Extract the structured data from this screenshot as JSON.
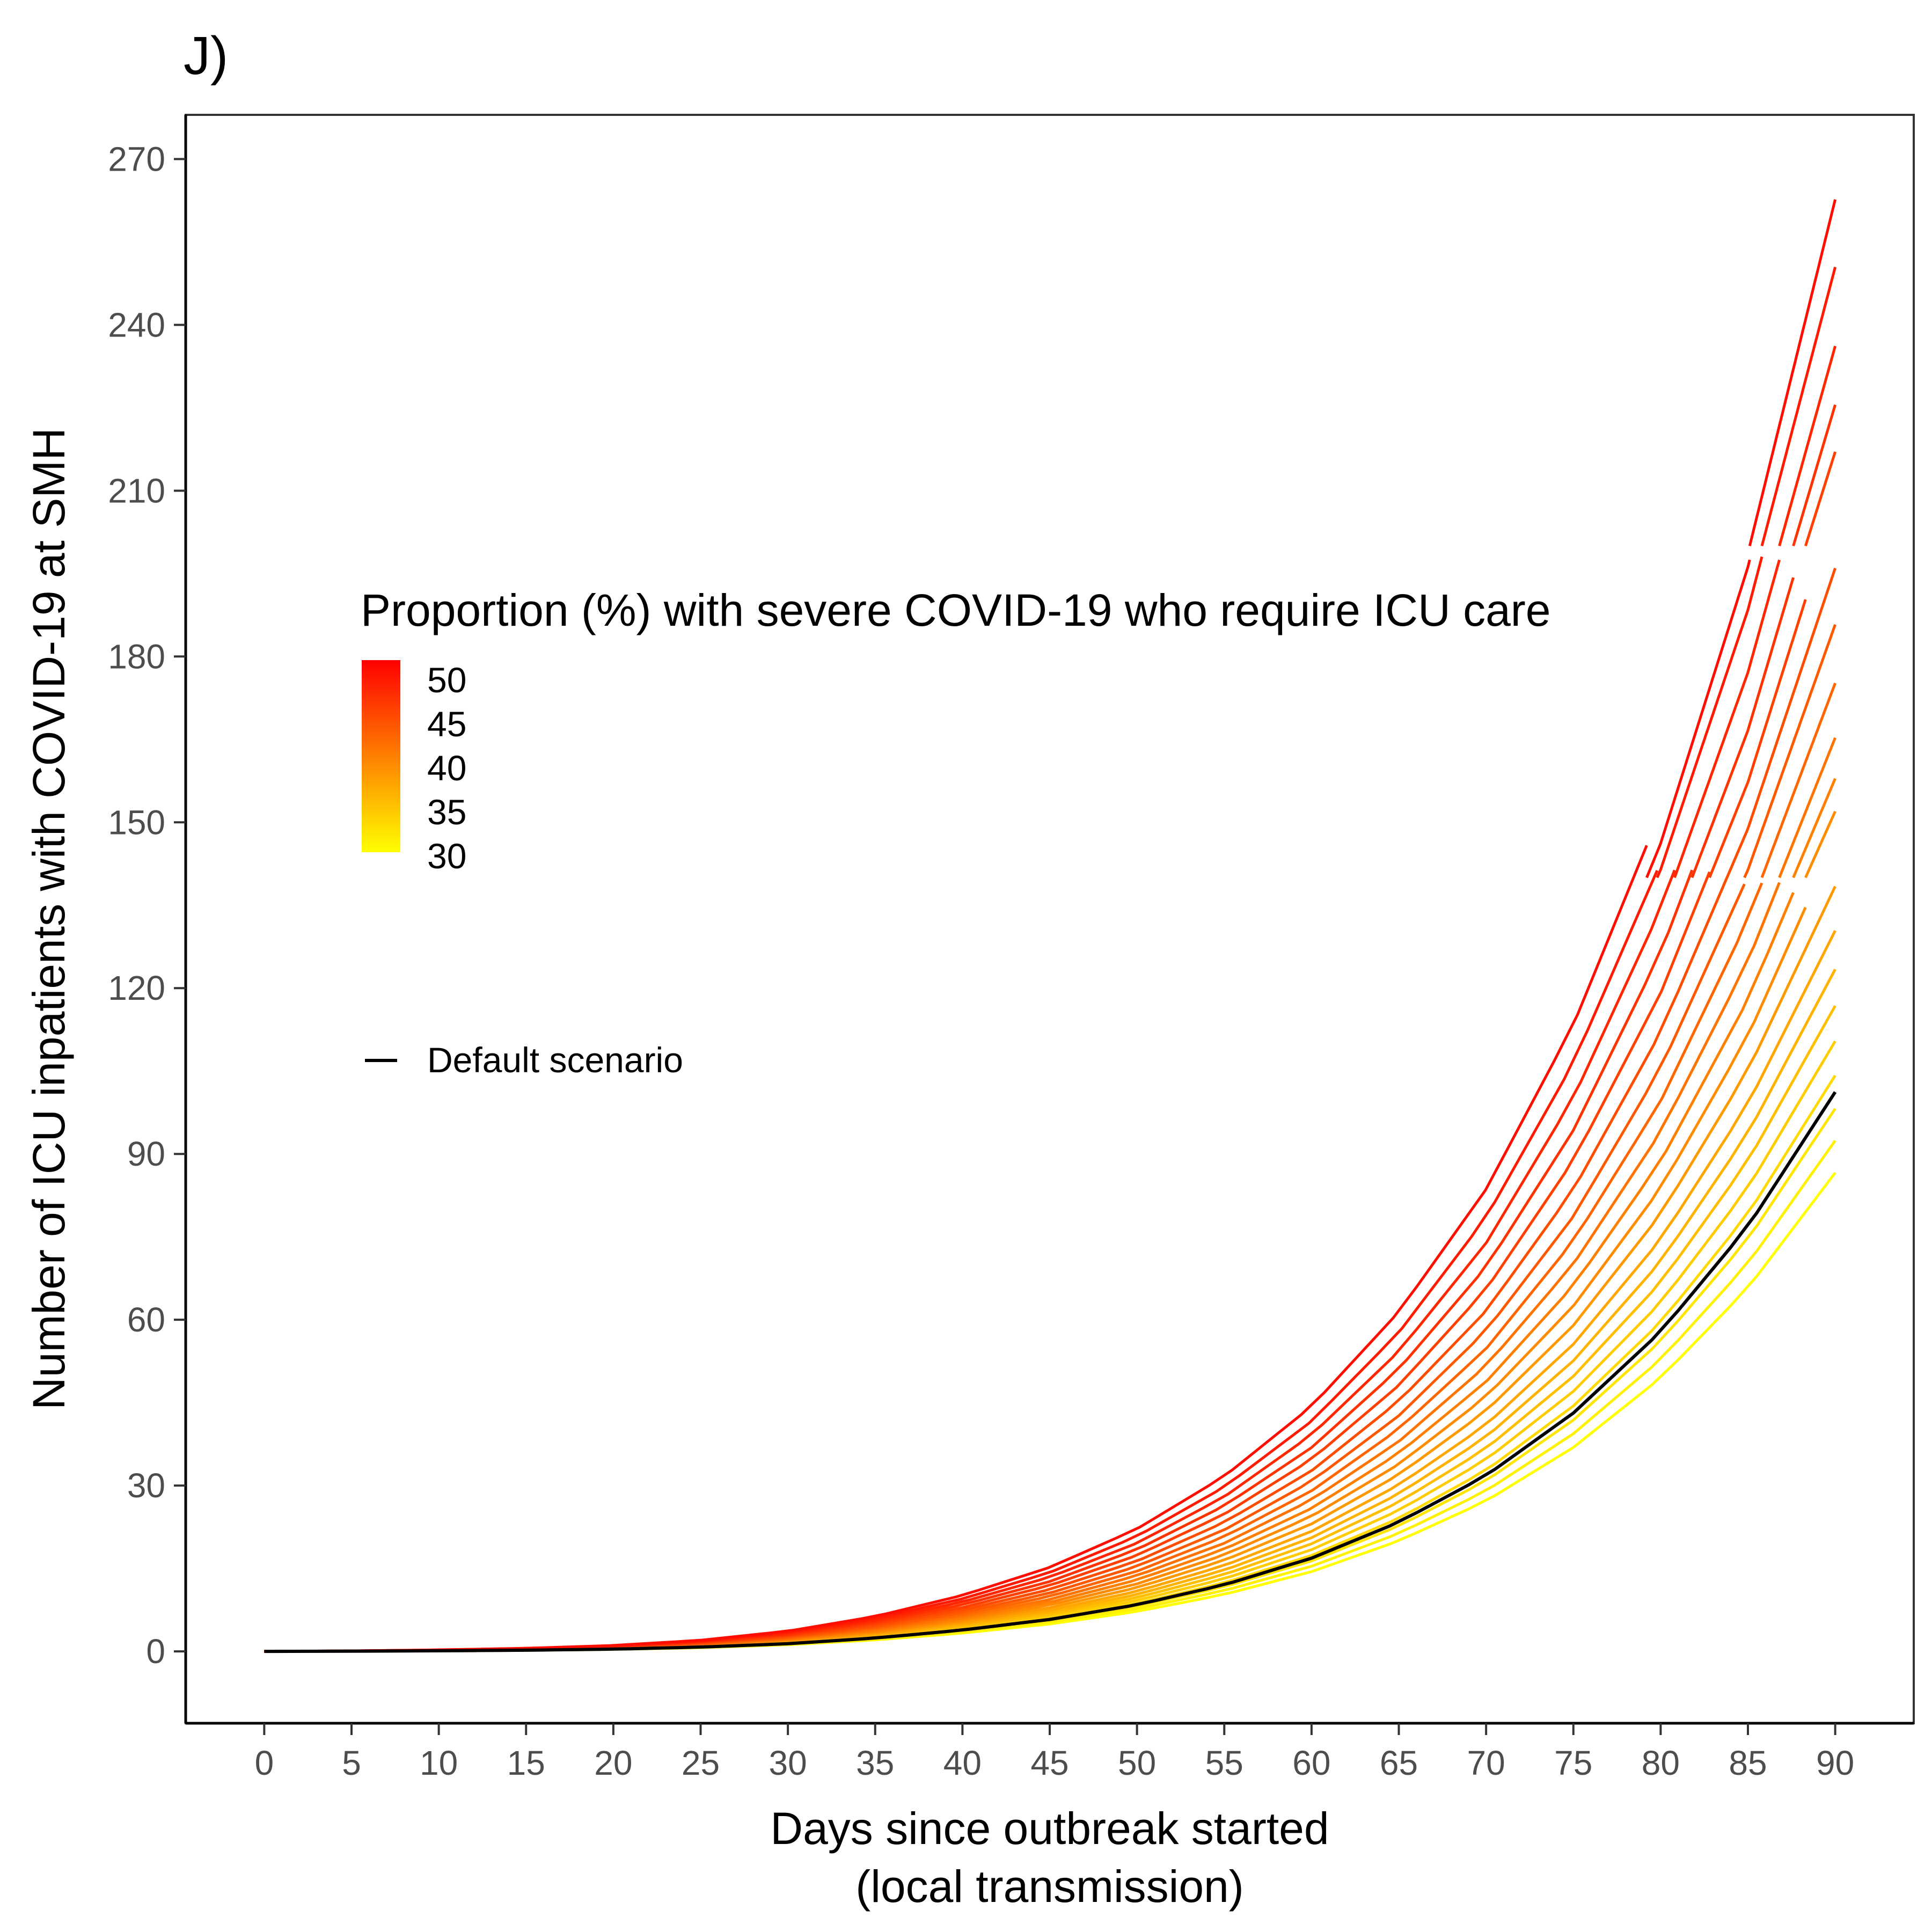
{
  "chart_data": {
    "type": "line",
    "panel_label": "J)",
    "xlabel": [
      "Days since outbreak started",
      "(local transmission)"
    ],
    "ylabel": "Number of ICU inpatients with COVID-19 at SMH",
    "xlim": [
      -4.5,
      94.5
    ],
    "ylim": [
      -13,
      278
    ],
    "x_ticks": [
      0,
      5,
      10,
      15,
      20,
      25,
      30,
      35,
      40,
      45,
      50,
      55,
      60,
      65,
      70,
      75,
      80,
      85,
      90
    ],
    "y_ticks": [
      0,
      30,
      60,
      90,
      120,
      150,
      180,
      210,
      240,
      270
    ],
    "grid": false,
    "legend": {
      "position": "inside-left",
      "title": "Proportion (%) with severe COVID-19 who require ICU care",
      "gradient_colors": [
        "#FFFF00",
        "#FF0000"
      ],
      "gradient_range": [
        30,
        50
      ],
      "gradient_labels": [
        50,
        45,
        40,
        35,
        30
      ],
      "line_label": "Default scenario",
      "line_color": "#000000"
    },
    "x_days": [
      0,
      5,
      10,
      15,
      20,
      25,
      30,
      35,
      40,
      45,
      50,
      55,
      60,
      65,
      70,
      75,
      80,
      85,
      90
    ],
    "growth_shape": [
      0,
      0.0016,
      0.0045,
      0.009,
      0.017,
      0.032,
      0.058,
      0.1,
      0.16,
      0.24,
      0.35,
      0.5,
      0.7,
      0.97,
      1.32,
      1.79,
      2.4,
      3.19,
      4.2
    ],
    "series": [
      {
        "icu_pct": 30,
        "final_value": 86.6,
        "segments": [
          {
            "x": [
              0,
              90
            ],
            "y0": 0
          }
        ]
      },
      {
        "icu_pct": 31,
        "final_value": 92.4,
        "segments": [
          {
            "x": [
              0,
              90
            ],
            "y0": 0
          }
        ]
      },
      {
        "icu_pct": 32,
        "final_value": 98.2,
        "segments": [
          {
            "x": [
              0,
              90
            ],
            "y0": 0
          }
        ]
      },
      {
        "icu_pct": 33,
        "final_value": 104.2,
        "segments": [
          {
            "x": [
              0,
              90
            ],
            "y0": 0
          }
        ]
      },
      {
        "icu_pct": 34,
        "final_value": 110.4,
        "segments": [
          {
            "x": [
              0,
              90
            ],
            "y0": 0
          }
        ]
      },
      {
        "icu_pct": 35,
        "final_value": 116.8,
        "segments": [
          {
            "x": [
              0,
              90
            ],
            "y0": 0
          }
        ]
      },
      {
        "icu_pct": 36,
        "final_value": 123.4,
        "segments": [
          {
            "x": [
              0,
              90
            ],
            "y0": 0
          }
        ]
      },
      {
        "icu_pct": 37,
        "final_value": 130.4,
        "segments": [
          {
            "x": [
              0,
              90
            ],
            "y0": 0
          }
        ]
      },
      {
        "icu_pct": 38,
        "final_value": 138.4,
        "segments": [
          {
            "x": [
              0,
              90
            ],
            "y0": 0
          }
        ]
      },
      {
        "icu_pct": 39,
        "final_value": 146.6,
        "segments": [
          {
            "x": [
              0,
              88.3
            ],
            "y0": 0
          },
          {
            "x": [
              88.3,
              90
            ],
            "y0": 140
          }
        ]
      },
      {
        "icu_pct": 40,
        "final_value": 155.2,
        "segments": [
          {
            "x": [
              0,
              87.6
            ],
            "y0": 0
          },
          {
            "x": [
              87.6,
              90
            ],
            "y0": 140
          }
        ]
      },
      {
        "icu_pct": 41,
        "final_value": 164.4,
        "segments": [
          {
            "x": [
              0,
              86.8
            ],
            "y0": 0
          },
          {
            "x": [
              86.8,
              90
            ],
            "y0": 140
          }
        ]
      },
      {
        "icu_pct": 42,
        "final_value": 174.2,
        "segments": [
          {
            "x": [
              0,
              85.8
            ],
            "y0": 0
          },
          {
            "x": [
              85.8,
              90
            ],
            "y0": 140
          }
        ]
      },
      {
        "icu_pct": 43,
        "final_value": 184.6,
        "segments": [
          {
            "x": [
              0,
              84.8
            ],
            "y0": 0
          },
          {
            "x": [
              84.8,
              90
            ],
            "y0": 140
          }
        ]
      },
      {
        "icu_pct": 44,
        "final_value": 196.0,
        "segments": [
          {
            "x": [
              0,
              83.8
            ],
            "y0": 0
          },
          {
            "x": [
              83.8,
              90
            ],
            "y0": 140
          }
        ]
      },
      {
        "icu_pct": 45,
        "final_value": 208.4,
        "segments": [
          {
            "x": [
              0,
              82.8
            ],
            "y0": 0
          },
          {
            "x": [
              82.8,
              88.3
            ],
            "y0": 140
          },
          {
            "x": [
              88.3,
              90
            ],
            "y0": 200
          }
        ]
      },
      {
        "icu_pct": 46,
        "final_value": 221.2,
        "segments": [
          {
            "x": [
              0,
              81.8
            ],
            "y0": 0
          },
          {
            "x": [
              81.8,
              87.6
            ],
            "y0": 140
          },
          {
            "x": [
              87.6,
              90
            ],
            "y0": 200
          }
        ]
      },
      {
        "icu_pct": 47,
        "final_value": 235.0,
        "segments": [
          {
            "x": [
              0,
              80.8
            ],
            "y0": 0
          },
          {
            "x": [
              80.8,
              86.8
            ],
            "y0": 140
          },
          {
            "x": [
              86.8,
              90
            ],
            "y0": 200
          }
        ]
      },
      {
        "icu_pct": 48,
        "final_value": 249.8,
        "segments": [
          {
            "x": [
              0,
              79.8
            ],
            "y0": 0
          },
          {
            "x": [
              79.8,
              85.8
            ],
            "y0": 140
          },
          {
            "x": [
              85.8,
              90
            ],
            "y0": 200
          }
        ]
      },
      {
        "icu_pct": 49,
        "final_value": 266.0,
        "segments": [
          {
            "x": [
              0,
              79.2
            ],
            "y0": 0
          },
          {
            "x": [
              79.2,
              85.1
            ],
            "y0": 140
          },
          {
            "x": [
              85.1,
              90
            ],
            "y0": 200
          }
        ]
      }
    ],
    "default_scenario": {
      "final_value": 101.2,
      "segments": [
        {
          "x": [
            0,
            90
          ],
          "y0": 0
        }
      ]
    }
  }
}
